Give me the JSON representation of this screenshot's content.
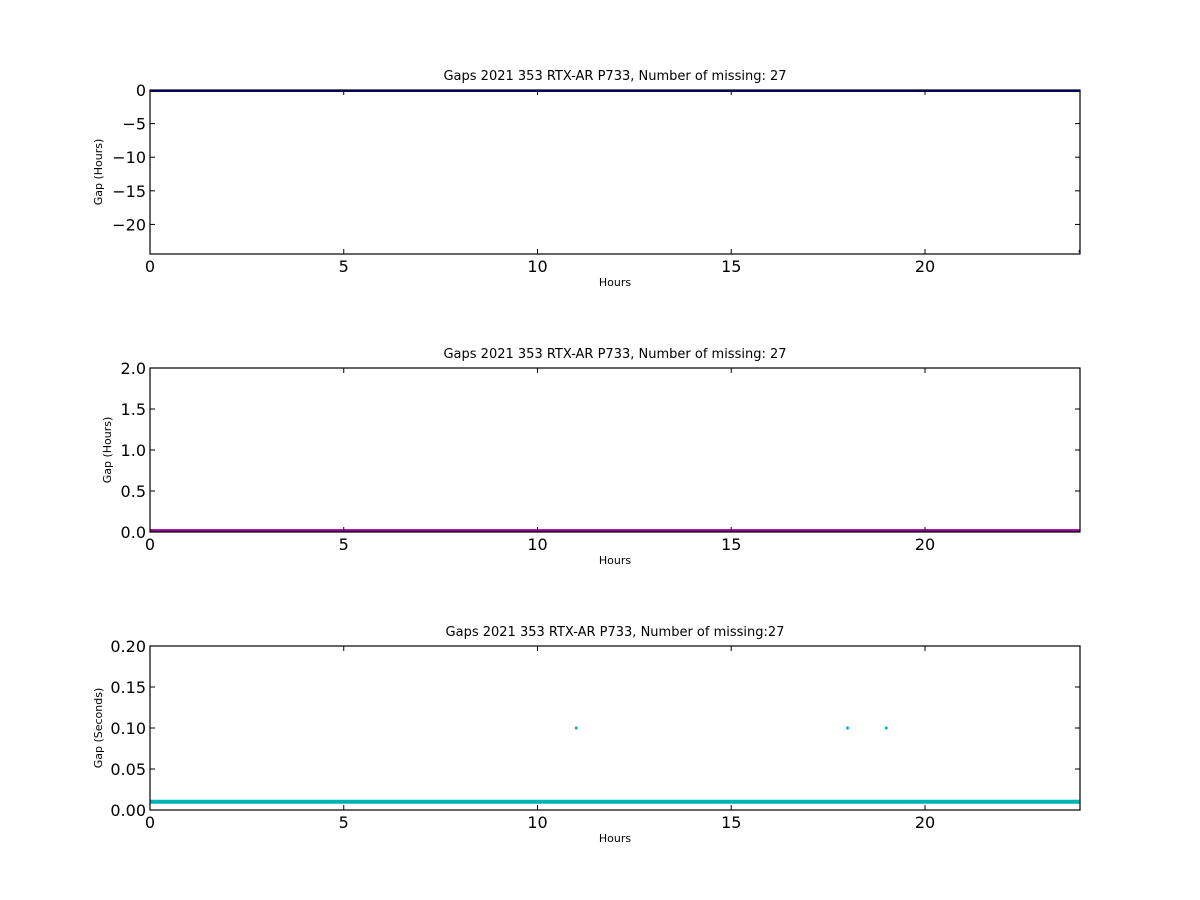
{
  "chart_data": [
    {
      "type": "line",
      "title": "Gaps 2021 353 RTX-AR  P733, Number of missing: 27",
      "xlabel": "Hours",
      "ylabel": "Gap (Hours)",
      "xlim": [
        0,
        24
      ],
      "ylim": [
        -24.4,
        0
      ],
      "xticks": [
        0,
        5,
        10,
        15,
        20
      ],
      "xtick_labels": [
        "0",
        "5",
        "10",
        "15",
        "20"
      ],
      "yticks": [
        0,
        -5,
        -10,
        -15,
        -20
      ],
      "ytick_labels": [
        "0",
        "−5",
        "−10",
        "−15",
        "−20"
      ],
      "grid": false,
      "series": [
        {
          "x": [
            0,
            24
          ],
          "values": [
            0,
            0
          ],
          "color": "#000080",
          "marker": "line"
        },
        {
          "x": [
            24
          ],
          "values": [
            -24
          ],
          "color": "#000080",
          "marker": "point"
        }
      ]
    },
    {
      "type": "line",
      "title": "Gaps 2021 353 RTX-AR  P733, Number of missing: 27",
      "xlabel": "Hours",
      "ylabel": "Gap (Hours)",
      "xlim": [
        0,
        24
      ],
      "ylim": [
        0,
        2.0
      ],
      "xticks": [
        0,
        5,
        10,
        15,
        20
      ],
      "xtick_labels": [
        "0",
        "5",
        "10",
        "15",
        "20"
      ],
      "yticks": [
        0,
        0.5,
        1.0,
        1.5,
        2.0
      ],
      "ytick_labels": [
        "0.0",
        "0.5",
        "1.0",
        "1.5",
        "2.0"
      ],
      "grid": false,
      "series": [
        {
          "x": [
            0,
            24
          ],
          "values": [
            0.01,
            0.01
          ],
          "color": "#990099",
          "marker": "line"
        }
      ]
    },
    {
      "type": "scatter",
      "title": "Gaps 2021 353 RTX-AR  P733, Number of missing:27",
      "xlabel": "Hours",
      "ylabel": "Gap (Seconds)",
      "xlim": [
        0,
        24
      ],
      "ylim": [
        0,
        0.2
      ],
      "xticks": [
        0,
        5,
        10,
        15,
        20
      ],
      "xtick_labels": [
        "0",
        "5",
        "10",
        "15",
        "20"
      ],
      "yticks": [
        0,
        0.05,
        0.1,
        0.15,
        0.2
      ],
      "ytick_labels": [
        "0.00",
        "0.05",
        "0.10",
        "0.15",
        "0.20"
      ],
      "grid": false,
      "series": [
        {
          "x": [
            0,
            24
          ],
          "values": [
            0.01,
            0.01
          ],
          "color": "#00b3b3",
          "marker": "line"
        },
        {
          "x": [
            11,
            18,
            19
          ],
          "values": [
            0.1,
            0.1,
            0.1
          ],
          "color": "#00b3b3",
          "marker": "point"
        }
      ]
    }
  ]
}
